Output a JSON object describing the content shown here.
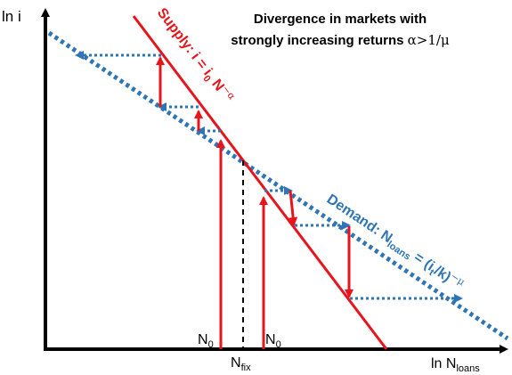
{
  "title": {
    "line1": "Divergence in markets with",
    "line2_text": "strongly increasing returns ",
    "line2_math": "α>1/μ"
  },
  "axes": {
    "y_label": "ln i",
    "x_label_main": "ln N",
    "x_label_sub": "loans"
  },
  "supply_label": {
    "prefix": "Supply: i = i",
    "sub": "0",
    "mid": " N",
    "sup": "−α"
  },
  "demand_label": {
    "prefix": "Demand: N",
    "sub": "loans",
    "mid": " = (i",
    "sub2": "t",
    "after": "/k)",
    "sup": "−μ"
  },
  "markers": {
    "n0_left": {
      "main": "N",
      "sub": "0"
    },
    "n0_right": {
      "main": "N",
      "sub": "0"
    },
    "nfix": {
      "main": "N",
      "sub": "fix"
    }
  },
  "colors": {
    "supply": "#e8141b",
    "demand": "#2e75b6",
    "axis": "#000000",
    "fix_line": "#000000"
  }
}
